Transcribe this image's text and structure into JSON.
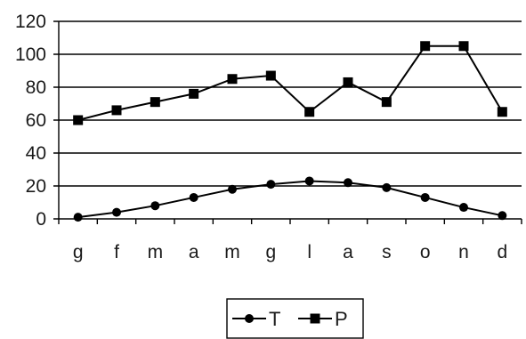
{
  "chart_data": {
    "type": "line",
    "categories": [
      "g",
      "f",
      "m",
      "a",
      "m",
      "g",
      "l",
      "a",
      "s",
      "o",
      "n",
      "d"
    ],
    "ylim": [
      0,
      120
    ],
    "yticks": [
      0,
      20,
      40,
      60,
      80,
      100,
      120
    ],
    "grid": "horizontal",
    "legend_position": "bottom",
    "series": [
      {
        "name": "T",
        "marker": "circle",
        "color": "#000000",
        "values": [
          1,
          4,
          8,
          13,
          18,
          21,
          23,
          22,
          19,
          13,
          7,
          2
        ]
      },
      {
        "name": "P",
        "marker": "square",
        "color": "#000000",
        "values": [
          60,
          66,
          71,
          76,
          85,
          87,
          65,
          83,
          71,
          105,
          105,
          65
        ]
      }
    ]
  }
}
